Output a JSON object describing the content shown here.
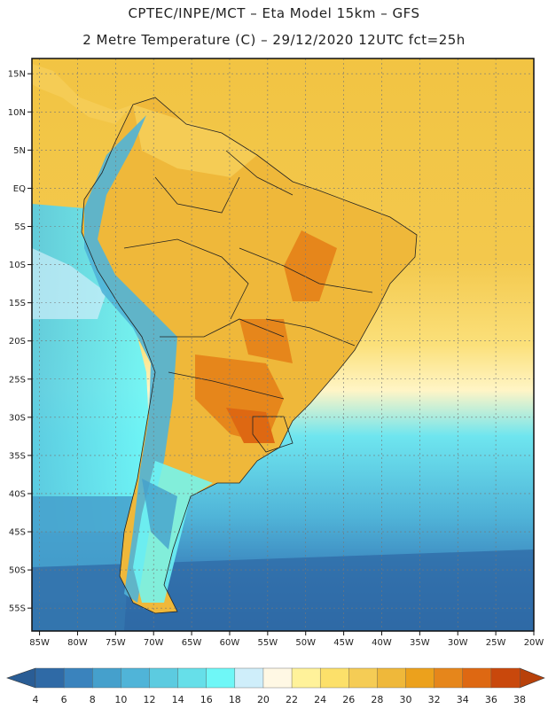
{
  "title_line1": "CPTEC/INPE/MCT –  Eta Model 15km – GFS",
  "title_line2": "2 Metre Temperature (C) – 29/12/2020 12UTC fct=25h",
  "lat_labels": [
    "15N",
    "10N",
    "5N",
    "EQ",
    "5S",
    "10S",
    "15S",
    "20S",
    "25S",
    "30S",
    "35S",
    "40S",
    "45S",
    "50S",
    "55S"
  ],
  "lat_values": [
    15,
    10,
    5,
    0,
    -5,
    -10,
    -15,
    -20,
    -25,
    -30,
    -35,
    -40,
    -45,
    -50,
    -55
  ],
  "lon_labels": [
    "85W",
    "80W",
    "75W",
    "70W",
    "65W",
    "60W",
    "55W",
    "50W",
    "45W",
    "40W",
    "35W",
    "30W",
    "25W",
    "20W"
  ],
  "lon_values": [
    -85,
    -80,
    -75,
    -70,
    -65,
    -60,
    -55,
    -50,
    -45,
    -40,
    -35,
    -30,
    -25,
    -20
  ],
  "lat_range": [
    -58,
    17
  ],
  "lon_range": [
    -86,
    -20
  ],
  "colorbar": {
    "labels": [
      "4",
      "6",
      "8",
      "10",
      "12",
      "14",
      "16",
      "18",
      "20",
      "22",
      "24",
      "26",
      "28",
      "30",
      "32",
      "34",
      "36",
      "38"
    ],
    "colors": [
      "#2f6aa6",
      "#3a83bd",
      "#45a0cc",
      "#50b4d8",
      "#5ccbe0",
      "#66dfe9",
      "#6ff7f7",
      "#cfeefa",
      "#fff8e4",
      "#fff29a",
      "#fce06a",
      "#f5cc55",
      "#efb83a",
      "#eca11c",
      "#e6861b",
      "#de6812",
      "#c9480c"
    ],
    "low_cap_color": "#2a5d95",
    "high_cap_color": "#b8410a"
  }
}
